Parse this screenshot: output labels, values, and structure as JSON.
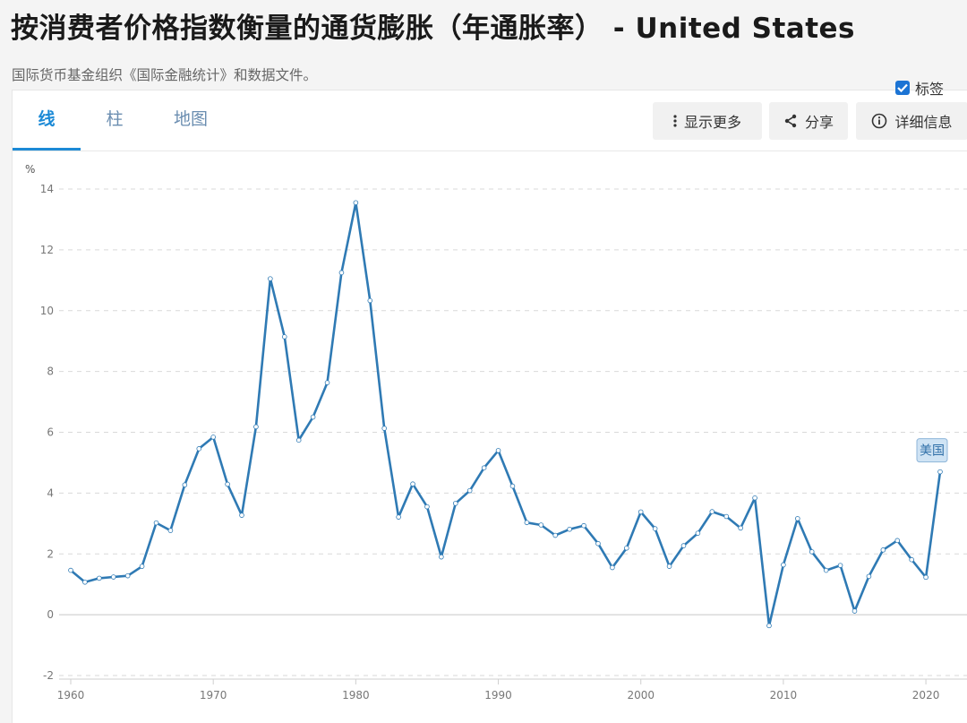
{
  "page": {
    "title": "按消费者价格指数衡量的通货膨胀（年通胀率）  - United States",
    "subtitle": "国际货币基金组织《国际金融统计》和数据文件。"
  },
  "tabs": [
    {
      "label": "线",
      "active": true
    },
    {
      "label": "柱",
      "active": false
    },
    {
      "label": "地图",
      "active": false
    }
  ],
  "toolbar": {
    "more_label": "显示更多",
    "share_label": "分享",
    "details_label": "详细信息"
  },
  "legend": {
    "checkbox_label": "标签",
    "checked": true
  },
  "colors": {
    "line": "#2f7ab4",
    "accent": "#1c8ad6",
    "grid": "#d9d9d9",
    "series_label_bg": "#cfe3f4"
  },
  "chart_data": {
    "type": "line",
    "title": "",
    "xlabel": "",
    "ylabel": "%",
    "xlim": [
      1960,
      2021
    ],
    "ylim": [
      -2,
      14
    ],
    "y_ticks": [
      -2,
      0,
      2,
      4,
      6,
      8,
      10,
      12,
      14
    ],
    "x_ticks": [
      1960,
      1970,
      1980,
      1990,
      2000,
      2010,
      2020
    ],
    "grid": true,
    "series": [
      {
        "name": "美国",
        "x": [
          1960,
          1961,
          1962,
          1963,
          1964,
          1965,
          1966,
          1967,
          1968,
          1969,
          1970,
          1971,
          1972,
          1973,
          1974,
          1975,
          1976,
          1977,
          1978,
          1979,
          1980,
          1981,
          1982,
          1983,
          1984,
          1985,
          1986,
          1987,
          1988,
          1989,
          1990,
          1991,
          1992,
          1993,
          1994,
          1995,
          1996,
          1997,
          1998,
          1999,
          2000,
          2001,
          2002,
          2003,
          2004,
          2005,
          2006,
          2007,
          2008,
          2009,
          2010,
          2011,
          2012,
          2013,
          2014,
          2015,
          2016,
          2017,
          2018,
          2019,
          2020,
          2021
        ],
        "y": [
          1.46,
          1.07,
          1.2,
          1.24,
          1.28,
          1.59,
          3.02,
          2.77,
          4.27,
          5.46,
          5.84,
          4.29,
          3.27,
          6.18,
          11.05,
          9.14,
          5.74,
          6.5,
          7.63,
          11.25,
          13.55,
          10.33,
          6.13,
          3.21,
          4.3,
          3.55,
          1.9,
          3.66,
          4.08,
          4.83,
          5.4,
          4.23,
          3.03,
          2.95,
          2.61,
          2.81,
          2.93,
          2.34,
          1.55,
          2.19,
          3.38,
          2.83,
          1.59,
          2.27,
          2.68,
          3.39,
          3.23,
          2.85,
          3.84,
          -0.36,
          1.64,
          3.16,
          2.07,
          1.46,
          1.62,
          0.12,
          1.26,
          2.13,
          2.44,
          1.81,
          1.23,
          4.7
        ]
      }
    ]
  }
}
